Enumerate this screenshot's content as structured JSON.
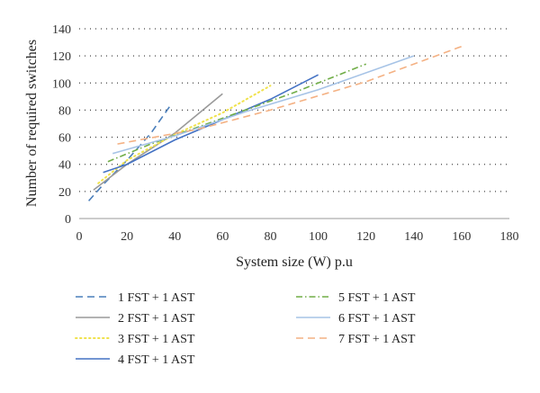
{
  "chart_data": {
    "type": "line",
    "title": "",
    "xlabel": "System size (W) p.u",
    "ylabel": "Number of required switches",
    "xlim": [
      0,
      180
    ],
    "ylim": [
      0,
      140
    ],
    "xticks": [
      0,
      20,
      40,
      60,
      80,
      100,
      120,
      140,
      160,
      180
    ],
    "yticks": [
      0,
      20,
      40,
      60,
      80,
      100,
      120,
      140
    ],
    "grid": "horizontal dotted",
    "legend_position": "bottom, two columns",
    "series": [
      {
        "name": "1 FST + 1 AST",
        "color": "#4a7ebb",
        "dash": "dashed",
        "x": [
          4,
          10,
          20,
          30,
          38
        ],
        "y": [
          13,
          25,
          43,
          63,
          83
        ]
      },
      {
        "name": "2 FST + 1 AST",
        "color": "#9a9a9a",
        "dash": "solid",
        "x": [
          6,
          20,
          40,
          60
        ],
        "y": [
          21,
          40,
          63,
          92
        ]
      },
      {
        "name": "3 FST + 1 AST",
        "color": "#f0e24c",
        "dash": "dotted",
        "x": [
          8,
          20,
          40,
          60,
          80
        ],
        "y": [
          26,
          43,
          62,
          78,
          98
        ]
      },
      {
        "name": "4 FST + 1 AST",
        "color": "#4472c4",
        "dash": "solid",
        "x": [
          10,
          20,
          40,
          60,
          80,
          100
        ],
        "y": [
          34,
          40,
          58,
          73,
          88,
          106
        ]
      },
      {
        "name": "5 FST + 1 AST",
        "color": "#70ad47",
        "dash": "dashdot",
        "x": [
          12,
          30,
          60,
          90,
          120
        ],
        "y": [
          42,
          55,
          74,
          93,
          114
        ]
      },
      {
        "name": "6 FST + 1 AST",
        "color": "#a6c3e6",
        "dash": "solid",
        "x": [
          14,
          40,
          70,
          100,
          140
        ],
        "y": [
          48,
          61,
          79,
          95,
          120
        ]
      },
      {
        "name": "7 FST + 1 AST",
        "color": "#f4b183",
        "dash": "dashed",
        "x": [
          16,
          50,
          80,
          120,
          160
        ],
        "y": [
          55,
          66,
          80,
          101,
          127
        ]
      }
    ]
  }
}
